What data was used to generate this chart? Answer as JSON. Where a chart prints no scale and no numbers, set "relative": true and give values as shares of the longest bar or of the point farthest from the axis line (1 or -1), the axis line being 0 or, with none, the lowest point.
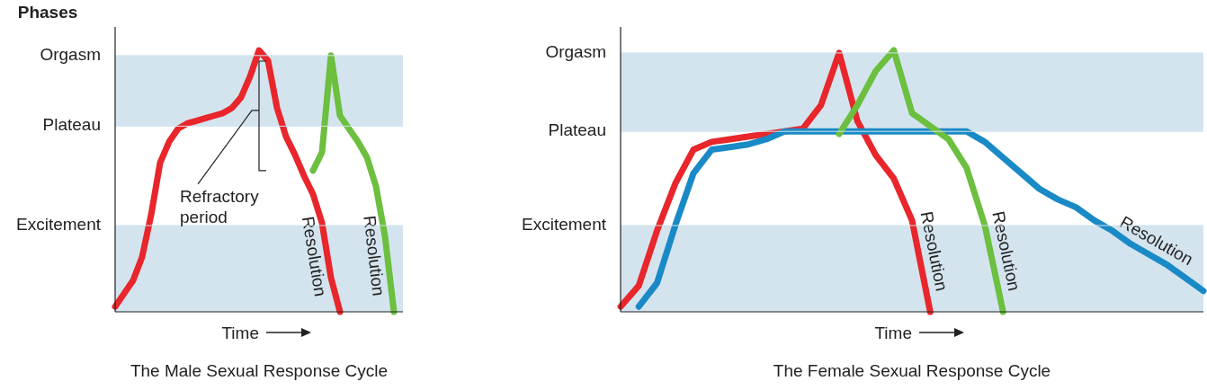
{
  "chart_data": [
    {
      "type": "line",
      "title": "The Male Sexual Response Cycle",
      "xlabel": "Time",
      "ylabel": "Phases",
      "relative": true,
      "categories": [
        null,
        null,
        null,
        null,
        null,
        null,
        null,
        null,
        null,
        null,
        null,
        null,
        null,
        null,
        null,
        null,
        null,
        null,
        null,
        null,
        null,
        null,
        null,
        null,
        null,
        null,
        null,
        null,
        null,
        null,
        null,
        null,
        null
      ],
      "ref_lines": [
        {
          "axis": "y",
          "value": 0.33,
          "label": "Excitement",
          "color": "#d4e4ee"
        },
        {
          "axis": "y",
          "value": 0.71,
          "label": "Plateau",
          "color": "#d4e4ee"
        },
        {
          "axis": "y",
          "value": 0.98,
          "label": "Orgasm",
          "color": "#d4e4ee"
        }
      ],
      "bands": [
        {
          "axis": "y",
          "from": 0,
          "to": 0.33,
          "color": "#d4e4ee"
        },
        {
          "axis": "y",
          "from": 0.71,
          "to": 0.98,
          "color": "#d4e4ee"
        }
      ],
      "series": [
        {
          "name": "Resolution",
          "color": "#e8262b",
          "values": [
            0.02,
            0.07,
            0.12,
            0.21,
            0.37,
            0.57,
            0.65,
            0.7,
            0.72,
            0.73,
            0.74,
            0.75,
            0.76,
            0.78,
            0.82,
            0.9,
            1,
            0.96,
            0.78,
            0.67,
            0.6,
            0.52,
            0.45,
            0.34,
            0.13,
            0,
            null,
            null,
            null,
            null,
            null,
            null,
            null
          ]
        },
        {
          "name": "Resolution",
          "color": "#6cbf3f",
          "values": [
            null,
            null,
            null,
            null,
            null,
            null,
            null,
            null,
            null,
            null,
            null,
            null,
            null,
            null,
            null,
            null,
            null,
            null,
            null,
            null,
            null,
            null,
            0.54,
            0.61,
            0.98,
            0.75,
            0.7,
            0.65,
            0.59,
            0.48,
            0.29,
            0,
            null
          ]
        }
      ],
      "annotations": [
        "Refractory period"
      ]
    },
    {
      "type": "line",
      "title": "The Female Sexual Response Cycle",
      "xlabel": "Time",
      "relative": true,
      "categories": [
        null,
        null,
        null,
        null,
        null,
        null,
        null,
        null,
        null,
        null,
        null,
        null,
        null,
        null,
        null,
        null,
        null,
        null,
        null,
        null,
        null,
        null,
        null,
        null,
        null,
        null,
        null,
        null,
        null,
        null,
        null,
        null,
        null
      ],
      "ref_lines": [
        {
          "axis": "y",
          "value": 0.33,
          "label": "Excitement",
          "color": "#d4e4ee"
        },
        {
          "axis": "y",
          "value": 0.69,
          "label": "Plateau",
          "color": "#d4e4ee"
        },
        {
          "axis": "y",
          "value": 0.99,
          "label": "Orgasm",
          "color": "#d4e4ee"
        }
      ],
      "bands": [
        {
          "axis": "y",
          "from": 0,
          "to": 0.33,
          "color": "#d4e4ee"
        },
        {
          "axis": "y",
          "from": 0.69,
          "to": 0.99,
          "color": "#d4e4ee"
        }
      ],
      "series": [
        {
          "name": "Resolution",
          "color": "#e8262b",
          "values": [
            0.02,
            0.1,
            0.31,
            0.49,
            0.62,
            0.65,
            0.66,
            0.67,
            0.68,
            0.69,
            0.7,
            0.79,
            0.99,
            0.73,
            0.6,
            0.51,
            0.35,
            0,
            null,
            null,
            null,
            null,
            null,
            null,
            null,
            null,
            null,
            null,
            null,
            null,
            null,
            null,
            null
          ]
        },
        {
          "name": "Resolution",
          "color": "#1a8ac6",
          "values": [
            null,
            0.02,
            0.11,
            0.33,
            0.53,
            0.62,
            0.63,
            0.64,
            0.66,
            0.69,
            0.69,
            0.69,
            0.69,
            0.69,
            0.69,
            0.69,
            0.69,
            0.69,
            0.69,
            0.69,
            0.65,
            0.59,
            0.53,
            0.47,
            0.43,
            0.4,
            0.35,
            0.31,
            0.26,
            0.22,
            0.18,
            0.13,
            0.08
          ]
        },
        {
          "name": "Resolution",
          "color": "#6cbf3f",
          "values": [
            null,
            null,
            null,
            null,
            null,
            null,
            null,
            null,
            null,
            null,
            null,
            null,
            0.68,
            0.79,
            0.92,
            1,
            0.76,
            0.71,
            0.66,
            0.55,
            0.33,
            0,
            null,
            null,
            null,
            null,
            null,
            null,
            null,
            null,
            null,
            null,
            null
          ]
        }
      ]
    }
  ]
}
